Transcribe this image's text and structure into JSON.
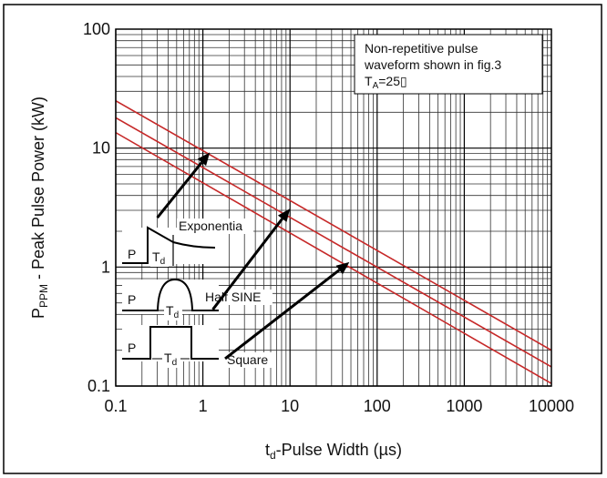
{
  "chart_data": {
    "type": "line",
    "title": "",
    "xlabel": {
      "main": "t",
      "sub": "d",
      "rest": "-Pulse Width (µs)"
    },
    "ylabel": {
      "main": "P",
      "sub": "PPM",
      "rest": " - Peak Pulse Power (kW)"
    },
    "xscale": "log",
    "yscale": "log",
    "xlim": [
      0.1,
      10000
    ],
    "ylim": [
      0.1,
      100
    ],
    "grid": true,
    "x_ticks": [
      "0.1",
      "1",
      "10",
      "100",
      "1000",
      "10000"
    ],
    "y_ticks": [
      "0.1",
      "1",
      "10",
      "100"
    ],
    "series": [
      {
        "color": "#c62828",
        "x": [
          0.1,
          10000
        ],
        "y": [
          25,
          0.2
        ]
      },
      {
        "color": "#c62828",
        "x": [
          0.1,
          10000
        ],
        "y": [
          18,
          0.145
        ]
      },
      {
        "color": "#c62828",
        "x": [
          0.1,
          10000
        ],
        "y": [
          13.5,
          0.105
        ]
      }
    ],
    "annotation": {
      "lines": [
        "Non-repetitive pulse",
        "waveform shown in fig.3"
      ],
      "temp": {
        "main": "T",
        "sub": "A",
        "rest": "=25▯"
      }
    },
    "waveforms": [
      {
        "label": "Exponentia",
        "shape": "exponential",
        "P": "P",
        "T": "T",
        "Tsub": "d"
      },
      {
        "label": "Half SINE",
        "shape": "half-sine",
        "P": "P",
        "T": "T",
        "Tsub": "d"
      },
      {
        "label": "Square",
        "shape": "square",
        "P": "P",
        "T": "T",
        "Tsub": "d"
      }
    ],
    "arrows": [
      {
        "from": [
          0.3,
          2.6
        ],
        "to": [
          1.2,
          9.2
        ]
      },
      {
        "from": [
          1.3,
          0.44
        ],
        "to": [
          10,
          3.1
        ]
      },
      {
        "from": [
          1.8,
          0.17
        ],
        "to": [
          48,
          1.1
        ]
      }
    ]
  }
}
